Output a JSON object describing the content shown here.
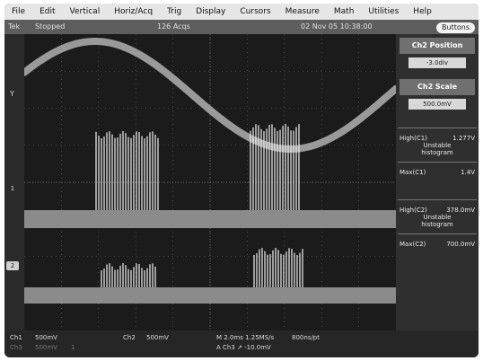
{
  "menu": [
    "File",
    "Edit",
    "Vertical",
    "Horiz/Acq",
    "Trig",
    "Display",
    "Cursors",
    "Measure",
    "Math",
    "Utilities",
    "Help"
  ],
  "status": {
    "brand": "Tek",
    "state": "Stopped",
    "acqs": "126 Acqs",
    "datetime": "02 Nov 05 10:38:00",
    "buttons_label": "Buttons"
  },
  "controls": {
    "position_title": "Ch2 Position",
    "position_value": "-3.0div",
    "scale_title": "Ch2 Scale",
    "scale_value": "500.0mV"
  },
  "measurements": {
    "c1_high_label": "High(C1)",
    "c1_high_value": "1.277V",
    "c1_high_status": "Unstable",
    "c1_high_note": "histogram",
    "c1_max_label": "Max(C1)",
    "c1_max_value": "1.4V",
    "c2_high_label": "High(C2)",
    "c2_high_value": "378.0mV",
    "c2_high_status": "Unstable",
    "c2_high_note": "histogram",
    "c2_max_label": "Max(C2)",
    "c2_max_value": "700.0mV"
  },
  "markers": {
    "ch1": "1",
    "ch2": "2",
    "y_marker": "Y"
  },
  "bottom": {
    "ch1_label": "Ch1",
    "ch1_scale": "500mV",
    "ch2_label": "Ch2",
    "ch2_scale": "500mV",
    "ch3_label": "Ch3",
    "ch3_scale": "500mV",
    "ch3_marker": "1",
    "timebase": "M 2.0ms 1.25MS/s",
    "resolution": "800ns/pt",
    "trigger": "A  Ch3  ↗  -10.0mV"
  }
}
